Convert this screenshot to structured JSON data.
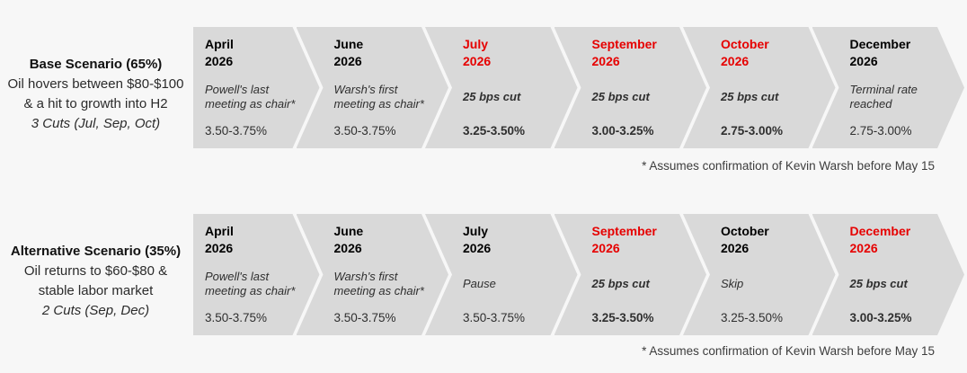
{
  "colors": {
    "page_background": "#f7f7f7",
    "chevron_fill": "#d9d9d9",
    "highlight_red": "#e60000",
    "text_black": "#000000"
  },
  "rows": [
    {
      "scenario": {
        "title": "Base Scenario (65%)",
        "desc1": "Oil hovers between $80-$100",
        "desc2": "& a hit to growth into H2",
        "cuts": "3 Cuts (Jul, Sep, Oct)"
      },
      "steps": [
        {
          "month": "April",
          "year": "2026",
          "desc": "Powell's last meeting as chair*",
          "rate": "3.50-3.75%",
          "month_class": "",
          "desc_class": "",
          "rate_class": ""
        },
        {
          "month": "June",
          "year": "2026",
          "desc": "Warsh's first meeting as chair*",
          "rate": "3.50-3.75%",
          "month_class": "",
          "desc_class": "",
          "rate_class": ""
        },
        {
          "month": "July",
          "year": "2026",
          "desc": "25 bps cut",
          "rate": "3.25-3.50%",
          "month_class": "red",
          "desc_class": "bold",
          "rate_class": "bold"
        },
        {
          "month": "September",
          "year": "2026",
          "desc": "25 bps cut",
          "rate": "3.00-3.25%",
          "month_class": "red",
          "desc_class": "bold",
          "rate_class": "bold"
        },
        {
          "month": "October",
          "year": "2026",
          "desc": "25 bps cut",
          "rate": "2.75-3.00%",
          "month_class": "red",
          "desc_class": "bold",
          "rate_class": "bold"
        },
        {
          "month": "December",
          "year": "2026",
          "desc": "Terminal rate reached",
          "rate": "2.75-3.00%",
          "month_class": "",
          "desc_class": "",
          "rate_class": ""
        }
      ],
      "footnote": "* Assumes confirmation of Kevin Warsh before May 15"
    },
    {
      "scenario": {
        "title": "Alternative Scenario (35%)",
        "desc1": "Oil returns to $60-$80 &",
        "desc2": "stable labor market",
        "cuts": "2 Cuts (Sep, Dec)"
      },
      "steps": [
        {
          "month": "April",
          "year": "2026",
          "desc": "Powell's last meeting as chair*",
          "rate": "3.50-3.75%",
          "month_class": "",
          "desc_class": "",
          "rate_class": ""
        },
        {
          "month": "June",
          "year": "2026",
          "desc": "Warsh's first meeting as chair*",
          "rate": "3.50-3.75%",
          "month_class": "",
          "desc_class": "",
          "rate_class": ""
        },
        {
          "month": "July",
          "year": "2026",
          "desc": "Pause",
          "rate": "3.50-3.75%",
          "month_class": "",
          "desc_class": "",
          "rate_class": ""
        },
        {
          "month": "September",
          "year": "2026",
          "desc": "25 bps cut",
          "rate": "3.25-3.50%",
          "month_class": "red",
          "desc_class": "bold",
          "rate_class": "bold"
        },
        {
          "month": "October",
          "year": "2026",
          "desc": "Skip",
          "rate": "3.25-3.50%",
          "month_class": "",
          "desc_class": "",
          "rate_class": ""
        },
        {
          "month": "December",
          "year": "2026",
          "desc": "25 bps cut",
          "rate": "3.00-3.25%",
          "month_class": "red",
          "desc_class": "bold",
          "rate_class": "bold"
        }
      ],
      "footnote": "* Assumes confirmation of Kevin Warsh before May 15"
    }
  ]
}
